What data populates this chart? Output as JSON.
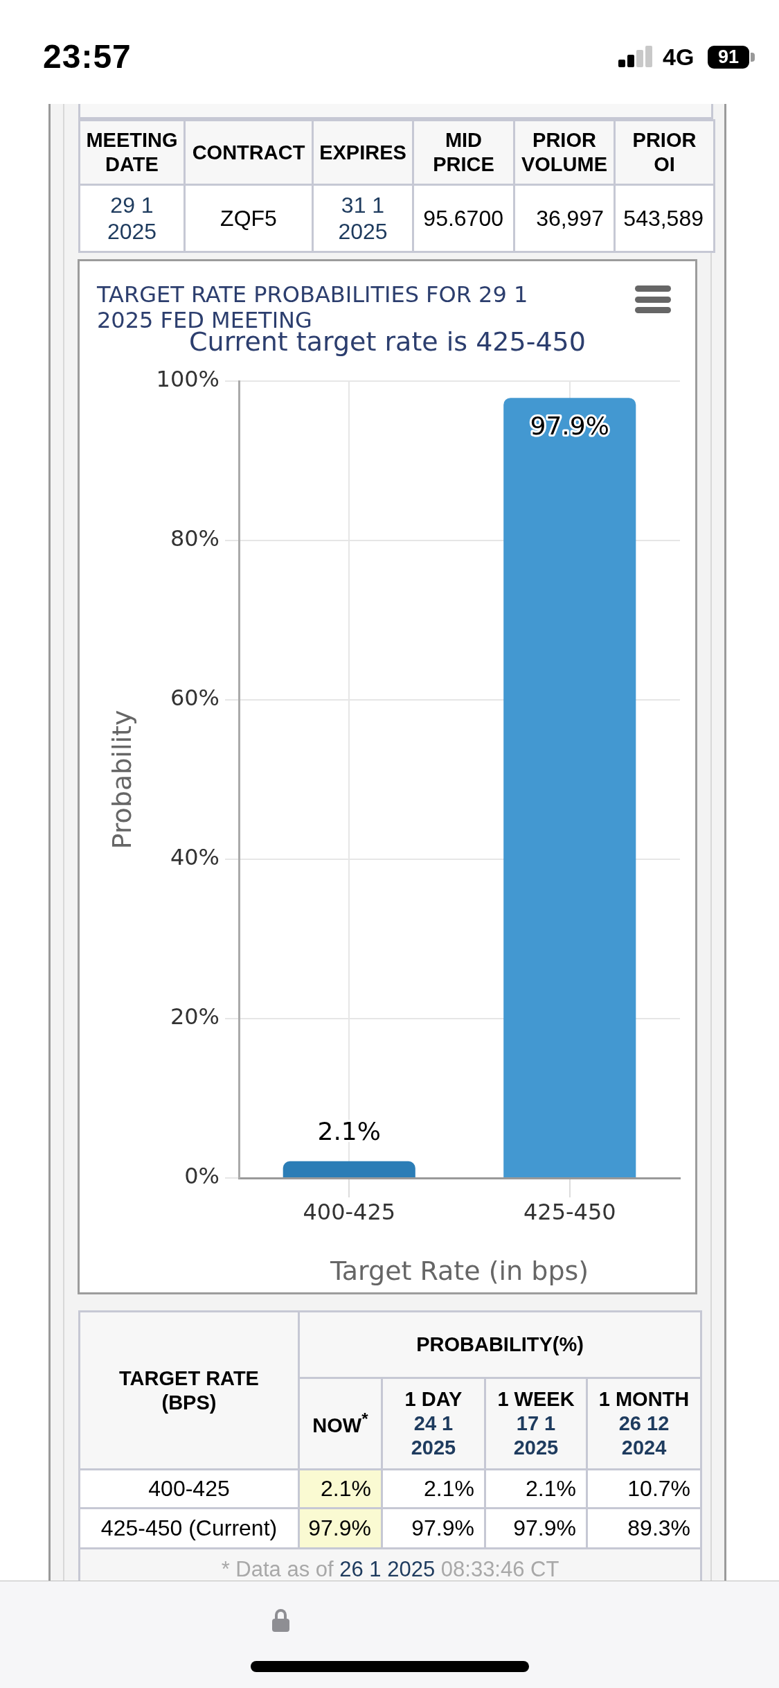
{
  "chart_data": [
    {
      "type": "other",
      "annotations": [
        "23:57",
        "4G",
        "91"
      ]
    },
    {
      "type": "other",
      "annotations": [
        "MEETING DATE",
        "CONTRACT",
        "EXPIRES",
        "MID PRICE",
        "PRIOR VOLUME",
        "PRIOR OI",
        "29 1 2025",
        "ZQF5",
        "31 1 2025",
        "95.6700",
        "36,997",
        "543,589"
      ]
    },
    {
      "type": "bar",
      "title": "TARGET RATE PROBABILITIES FOR 29 1 2025 FED MEETING",
      "subtitle": "Current target rate is 425-450",
      "xlabel": "Target Rate (in bps)",
      "ylabel": "Probability",
      "categories": [
        "400-425",
        "425-450"
      ],
      "values": [
        2.1,
        97.9
      ],
      "colors": [
        "#2b7db6",
        "#4398d1"
      ],
      "value_labels": [
        "2.1%",
        "97.9%"
      ],
      "ylim": [
        0,
        100
      ],
      "yticks": [
        {
          "value": 0,
          "label": "0%"
        },
        {
          "value": 20,
          "label": "20%"
        },
        {
          "value": 40,
          "label": "40%"
        },
        {
          "value": 60,
          "label": "60%"
        },
        {
          "value": 80,
          "label": "80%"
        },
        {
          "value": 100,
          "label": "100%"
        }
      ],
      "grid": true
    },
    {
      "type": "other",
      "annotations": [
        "TARGET RATE (BPS)",
        "PROBABILITY(%)",
        "NOW$^{*}$",
        "1 DAY",
        "24 1 2025",
        "1 WEEK",
        "17 1 2025",
        "1 MONTH",
        "26 12 2024",
        "400-425",
        "2.1%",
        "2.1%",
        "2.1%",
        "10.7%",
        "425-450 (Current)",
        "97.9%",
        "97.9%",
        "97.9%",
        "89.3%",
        "* Data as of",
        "26 1 2025",
        "08:33:46 CT"
      ]
    }
  ]
}
